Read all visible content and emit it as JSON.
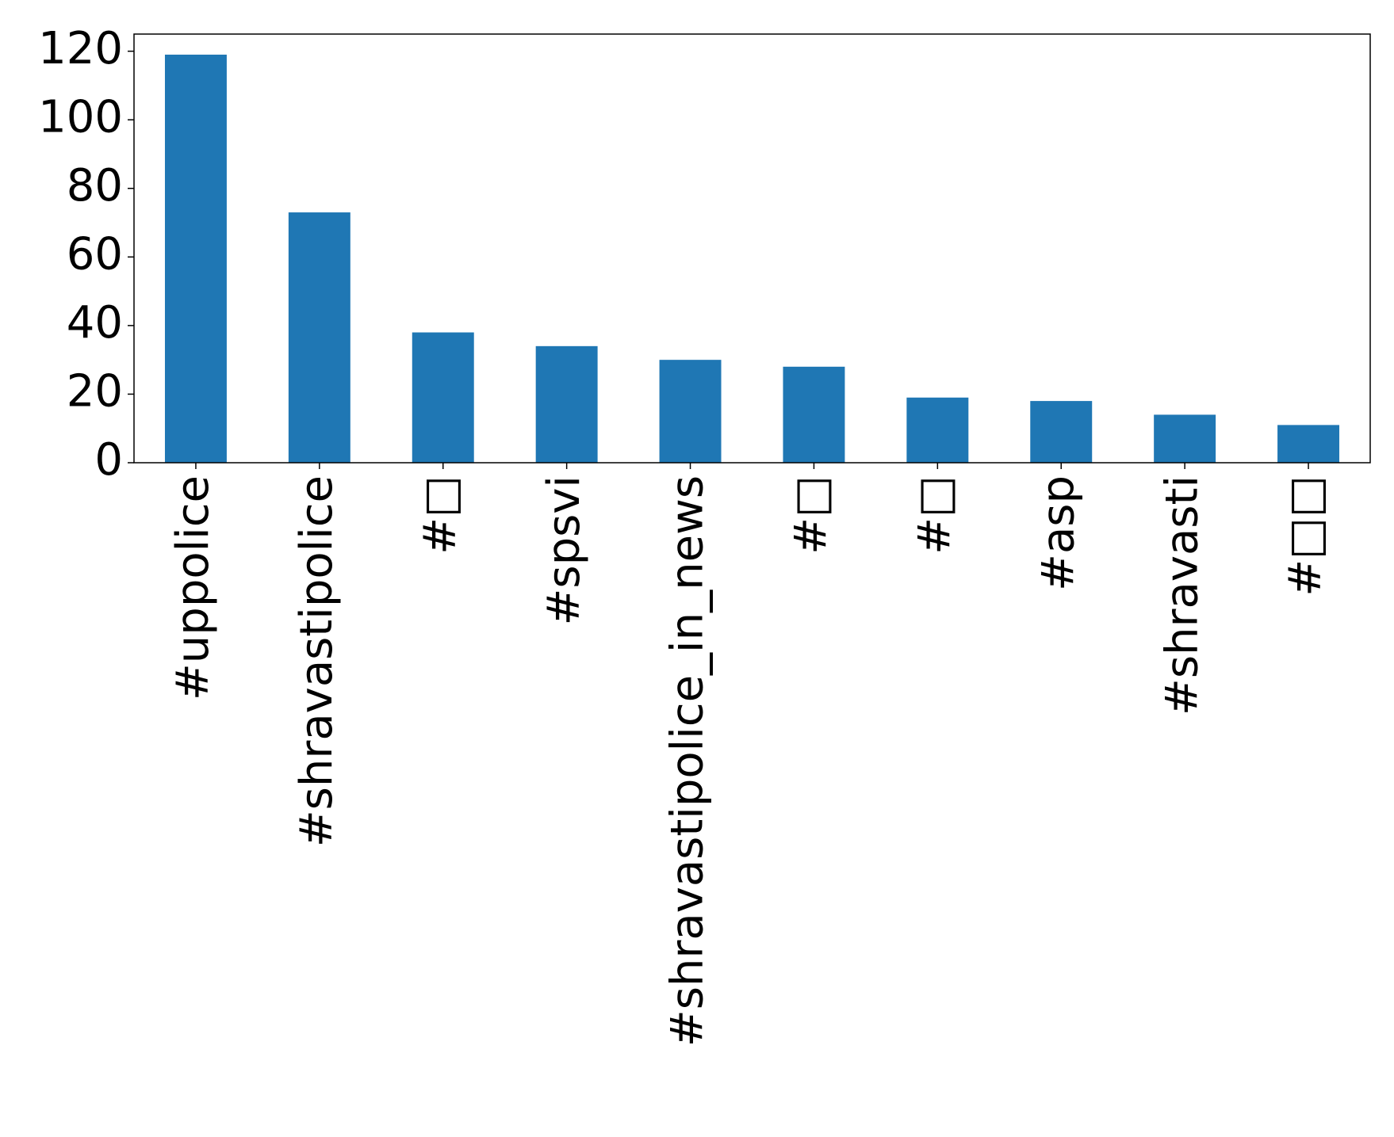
{
  "chart_data": {
    "type": "bar",
    "categories": [
      "#uppolice",
      "#shravastipolice",
      "#□",
      "#spsvi",
      "#shravastipolice_in_news",
      "#□",
      "#□",
      "#asp",
      "#shravasti",
      "#□□"
    ],
    "values": [
      119,
      73,
      38,
      34,
      30,
      28,
      19,
      18,
      14,
      11
    ],
    "color": "#1f77b4",
    "ylim": [
      0,
      125
    ],
    "yticks": [
      0,
      20,
      40,
      60,
      80,
      100,
      120
    ],
    "grid": false
  }
}
